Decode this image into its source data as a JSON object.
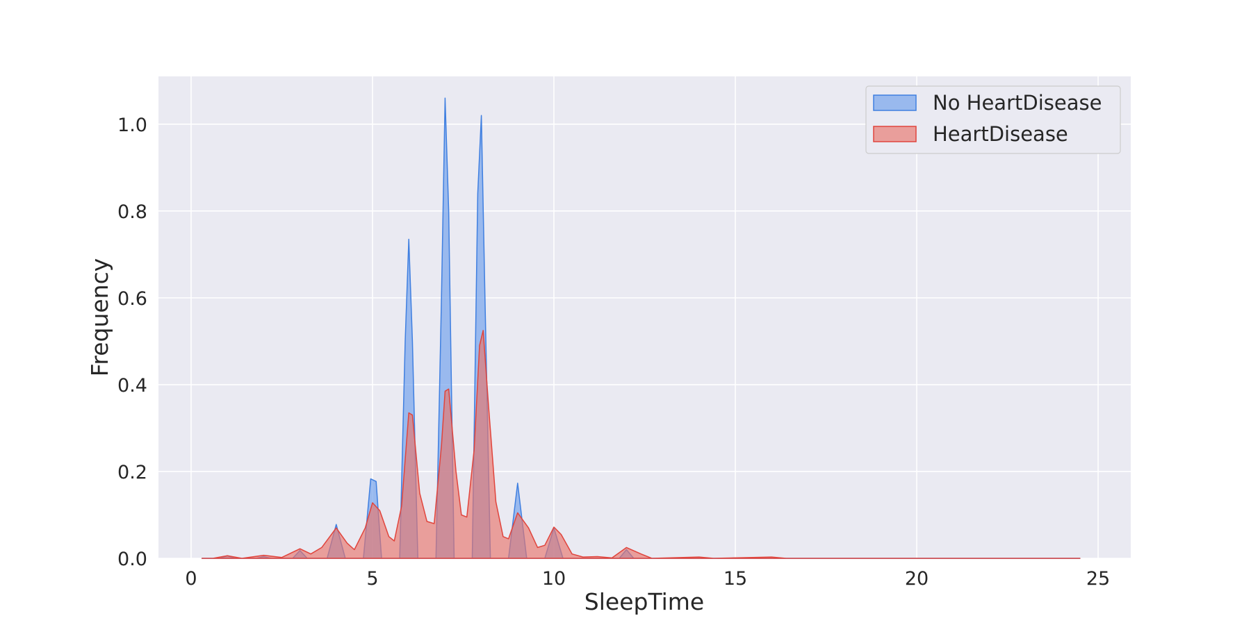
{
  "chart_data": {
    "type": "area",
    "title": "",
    "xlabel": "SleepTime",
    "ylabel": "Frequency",
    "xlim": [
      -0.9,
      25.9
    ],
    "ylim": [
      0,
      1.11
    ],
    "x_ticks": [
      0,
      5,
      10,
      15,
      20,
      25
    ],
    "y_ticks": [
      0.0,
      0.2,
      0.4,
      0.6,
      0.8,
      1.0
    ],
    "x_tick_labels": [
      "0",
      "5",
      "10",
      "15",
      "20",
      "25"
    ],
    "y_tick_labels": [
      "0.0",
      "0.2",
      "0.4",
      "0.6",
      "0.8",
      "1.0"
    ],
    "grid": true,
    "legend_position": "top-right",
    "series": [
      {
        "name": "No HeartDisease",
        "fill": "#6d9eeb",
        "stroke": "#3f7fe0",
        "points": [
          [
            0.3,
            0
          ],
          [
            0.8,
            0.0
          ],
          [
            1.0,
            0.006
          ],
          [
            1.2,
            0
          ],
          [
            1.8,
            0
          ],
          [
            2.0,
            0.004
          ],
          [
            2.2,
            0
          ],
          [
            2.8,
            0
          ],
          [
            3.0,
            0.018
          ],
          [
            3.2,
            0
          ],
          [
            3.75,
            0
          ],
          [
            4.0,
            0.078
          ],
          [
            4.25,
            0
          ],
          [
            4.75,
            0
          ],
          [
            4.95,
            0.183
          ],
          [
            5.1,
            0.177
          ],
          [
            5.25,
            0
          ],
          [
            5.75,
            0
          ],
          [
            5.9,
            0.5
          ],
          [
            6.0,
            0.735
          ],
          [
            6.1,
            0.5
          ],
          [
            6.25,
            0
          ],
          [
            6.75,
            0
          ],
          [
            6.9,
            0.6
          ],
          [
            7.0,
            1.06
          ],
          [
            7.1,
            0.8
          ],
          [
            7.25,
            0
          ],
          [
            7.75,
            0
          ],
          [
            7.9,
            0.84
          ],
          [
            8.0,
            1.02
          ],
          [
            8.1,
            0.6
          ],
          [
            8.25,
            0
          ],
          [
            8.75,
            0
          ],
          [
            9.0,
            0.173
          ],
          [
            9.25,
            0
          ],
          [
            9.75,
            0
          ],
          [
            10.0,
            0.07
          ],
          [
            10.25,
            0
          ],
          [
            11.8,
            0
          ],
          [
            12.0,
            0.02
          ],
          [
            12.2,
            0
          ],
          [
            14.8,
            0
          ],
          [
            15.0,
            0.001
          ],
          [
            15.2,
            0
          ],
          [
            24.5,
            0
          ]
        ]
      },
      {
        "name": "HeartDisease",
        "fill": "#e8746c",
        "stroke": "#e0443c",
        "points": [
          [
            0.3,
            0
          ],
          [
            0.6,
            0.0
          ],
          [
            1.0,
            0.006
          ],
          [
            1.4,
            0.0
          ],
          [
            2.0,
            0.007
          ],
          [
            2.5,
            0.002
          ],
          [
            3.0,
            0.022
          ],
          [
            3.3,
            0.01
          ],
          [
            3.6,
            0.025
          ],
          [
            4.0,
            0.07
          ],
          [
            4.3,
            0.035
          ],
          [
            4.5,
            0.02
          ],
          [
            4.8,
            0.07
          ],
          [
            5.0,
            0.128
          ],
          [
            5.2,
            0.11
          ],
          [
            5.45,
            0.05
          ],
          [
            5.6,
            0.04
          ],
          [
            5.8,
            0.12
          ],
          [
            6.0,
            0.335
          ],
          [
            6.1,
            0.33
          ],
          [
            6.3,
            0.15
          ],
          [
            6.5,
            0.085
          ],
          [
            6.7,
            0.08
          ],
          [
            6.9,
            0.26
          ],
          [
            7.0,
            0.385
          ],
          [
            7.1,
            0.39
          ],
          [
            7.3,
            0.2
          ],
          [
            7.45,
            0.1
          ],
          [
            7.6,
            0.095
          ],
          [
            7.8,
            0.25
          ],
          [
            7.95,
            0.49
          ],
          [
            8.05,
            0.525
          ],
          [
            8.2,
            0.35
          ],
          [
            8.4,
            0.13
          ],
          [
            8.6,
            0.05
          ],
          [
            8.75,
            0.045
          ],
          [
            9.0,
            0.105
          ],
          [
            9.3,
            0.07
          ],
          [
            9.55,
            0.025
          ],
          [
            9.75,
            0.03
          ],
          [
            10.0,
            0.072
          ],
          [
            10.2,
            0.055
          ],
          [
            10.5,
            0.01
          ],
          [
            10.8,
            0.003
          ],
          [
            11.2,
            0.004
          ],
          [
            11.6,
            0.001
          ],
          [
            12.0,
            0.025
          ],
          [
            12.4,
            0.01
          ],
          [
            12.7,
            0.0
          ],
          [
            14.0,
            0.003
          ],
          [
            14.4,
            0.0
          ],
          [
            16.0,
            0.003
          ],
          [
            16.4,
            0.0
          ],
          [
            24.5,
            0
          ]
        ]
      }
    ]
  }
}
